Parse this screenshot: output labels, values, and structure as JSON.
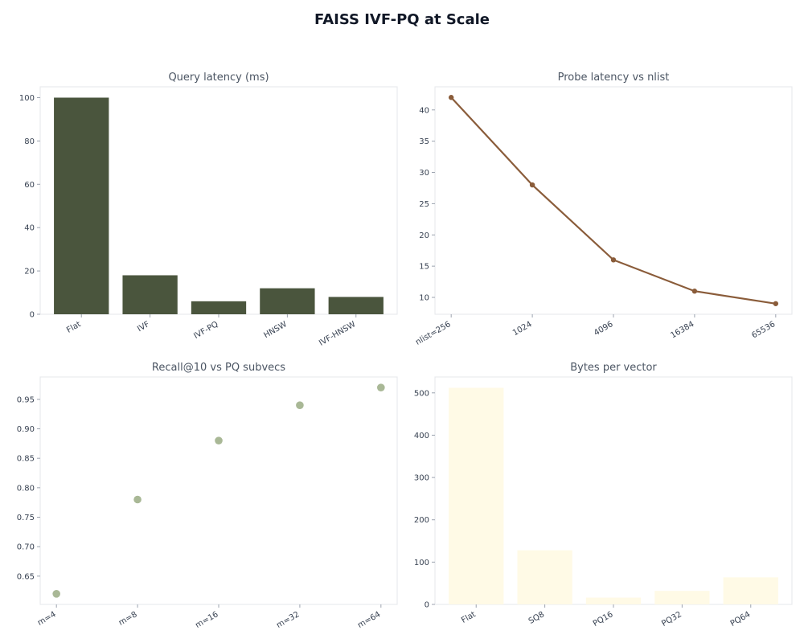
{
  "title": "FAISS IVF-PQ at Scale",
  "chart_data": [
    {
      "type": "bar",
      "title": "Query latency (ms)",
      "categories": [
        "Flat",
        "IVF",
        "IVF-PQ",
        "HNSW",
        "IVF-HNSW"
      ],
      "values": [
        100,
        18,
        6,
        12,
        8
      ],
      "ylim": [
        0,
        105
      ],
      "yticks": [
        0,
        20,
        40,
        60,
        80,
        100
      ],
      "color": "#4a553d",
      "grid": false
    },
    {
      "type": "line",
      "title": "Probe latency vs nlist",
      "categories": [
        "nlist=256",
        "1024",
        "4096",
        "16384",
        "65536"
      ],
      "values": [
        42,
        28,
        16,
        11,
        9
      ],
      "ylim": [
        7.3,
        43.7
      ],
      "yticks": [
        10,
        15,
        20,
        25,
        30,
        35,
        40
      ],
      "color": "#8a5c3a",
      "grid": false
    },
    {
      "type": "scatter",
      "title": "Recall@10 vs PQ subvecs",
      "categories": [
        "m=4",
        "m=8",
        "m=16",
        "m=32",
        "m=64"
      ],
      "values": [
        0.62,
        0.78,
        0.88,
        0.94,
        0.97
      ],
      "ylim": [
        0.602,
        0.988
      ],
      "yticks": [
        0.65,
        0.7,
        0.75,
        0.8,
        0.85,
        0.9,
        0.95
      ],
      "color": "#a9b896",
      "grid": false
    },
    {
      "type": "bar",
      "title": "Bytes per vector",
      "categories": [
        "Flat",
        "SQ8",
        "PQ16",
        "PQ32",
        "PQ64"
      ],
      "values": [
        512,
        128,
        16,
        32,
        64
      ],
      "ylim": [
        0,
        537.6
      ],
      "yticks": [
        0,
        100,
        200,
        300,
        400,
        500
      ],
      "color": "#fffae6",
      "grid": false
    }
  ]
}
